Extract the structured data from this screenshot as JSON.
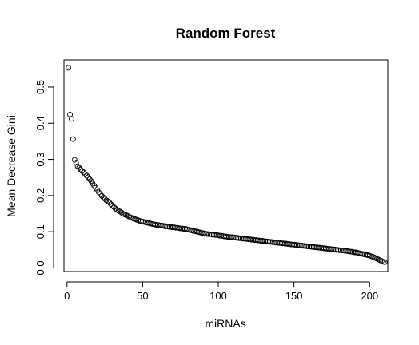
{
  "chart_data": {
    "type": "scatter",
    "title": "Random Forest",
    "xlabel": "miRNAs",
    "ylabel": "Mean Decrease Gini",
    "xlim": [
      -2,
      212
    ],
    "ylim": [
      -0.01,
      0.575
    ],
    "xticks": [
      "0",
      "50",
      "100",
      "150",
      "200"
    ],
    "yticks": [
      "0.0",
      "0.1",
      "0.2",
      "0.3",
      "0.4",
      "0.5"
    ],
    "marker": "open-circle",
    "grid": false,
    "y": [
      0.553,
      0.424,
      0.412,
      0.356,
      0.299,
      0.291,
      0.281,
      0.277,
      0.272,
      0.268,
      0.264,
      0.259,
      0.255,
      0.251,
      0.245,
      0.24,
      0.233,
      0.227,
      0.221,
      0.215,
      0.209,
      0.204,
      0.199,
      0.195,
      0.191,
      0.187,
      0.184,
      0.181,
      0.176,
      0.172,
      0.168,
      0.164,
      0.161,
      0.158,
      0.156,
      0.153,
      0.15,
      0.148,
      0.146,
      0.144,
      0.142,
      0.14,
      0.138,
      0.136,
      0.135,
      0.133,
      0.132,
      0.13,
      0.129,
      0.128,
      0.127,
      0.126,
      0.125,
      0.124,
      0.123,
      0.122,
      0.121,
      0.12,
      0.119,
      0.119,
      0.118,
      0.117,
      0.117,
      0.116,
      0.115,
      0.115,
      0.114,
      0.113,
      0.113,
      0.112,
      0.112,
      0.111,
      0.111,
      0.11,
      0.109,
      0.109,
      0.108,
      0.108,
      0.107,
      0.106,
      0.105,
      0.104,
      0.103,
      0.102,
      0.101,
      0.1,
      0.099,
      0.098,
      0.097,
      0.096,
      0.095,
      0.094,
      0.094,
      0.093,
      0.093,
      0.092,
      0.092,
      0.091,
      0.091,
      0.09,
      0.089,
      0.089,
      0.088,
      0.087,
      0.087,
      0.086,
      0.086,
      0.085,
      0.085,
      0.084,
      0.084,
      0.083,
      0.083,
      0.082,
      0.082,
      0.081,
      0.081,
      0.08,
      0.08,
      0.079,
      0.079,
      0.078,
      0.078,
      0.077,
      0.077,
      0.076,
      0.076,
      0.075,
      0.075,
      0.074,
      0.074,
      0.073,
      0.073,
      0.072,
      0.072,
      0.071,
      0.071,
      0.07,
      0.07,
      0.069,
      0.069,
      0.068,
      0.068,
      0.067,
      0.067,
      0.066,
      0.066,
      0.065,
      0.065,
      0.064,
      0.064,
      0.063,
      0.063,
      0.062,
      0.062,
      0.061,
      0.061,
      0.06,
      0.06,
      0.059,
      0.059,
      0.058,
      0.058,
      0.057,
      0.057,
      0.056,
      0.056,
      0.055,
      0.055,
      0.054,
      0.054,
      0.053,
      0.053,
      0.052,
      0.052,
      0.051,
      0.051,
      0.05,
      0.05,
      0.049,
      0.049,
      0.048,
      0.048,
      0.047,
      0.047,
      0.046,
      0.045,
      0.045,
      0.044,
      0.043,
      0.043,
      0.042,
      0.041,
      0.04,
      0.039,
      0.038,
      0.037,
      0.036,
      0.035,
      0.034,
      0.032,
      0.031,
      0.029,
      0.027,
      0.025,
      0.023,
      0.021,
      0.019,
      0.017,
      0.016
    ]
  }
}
